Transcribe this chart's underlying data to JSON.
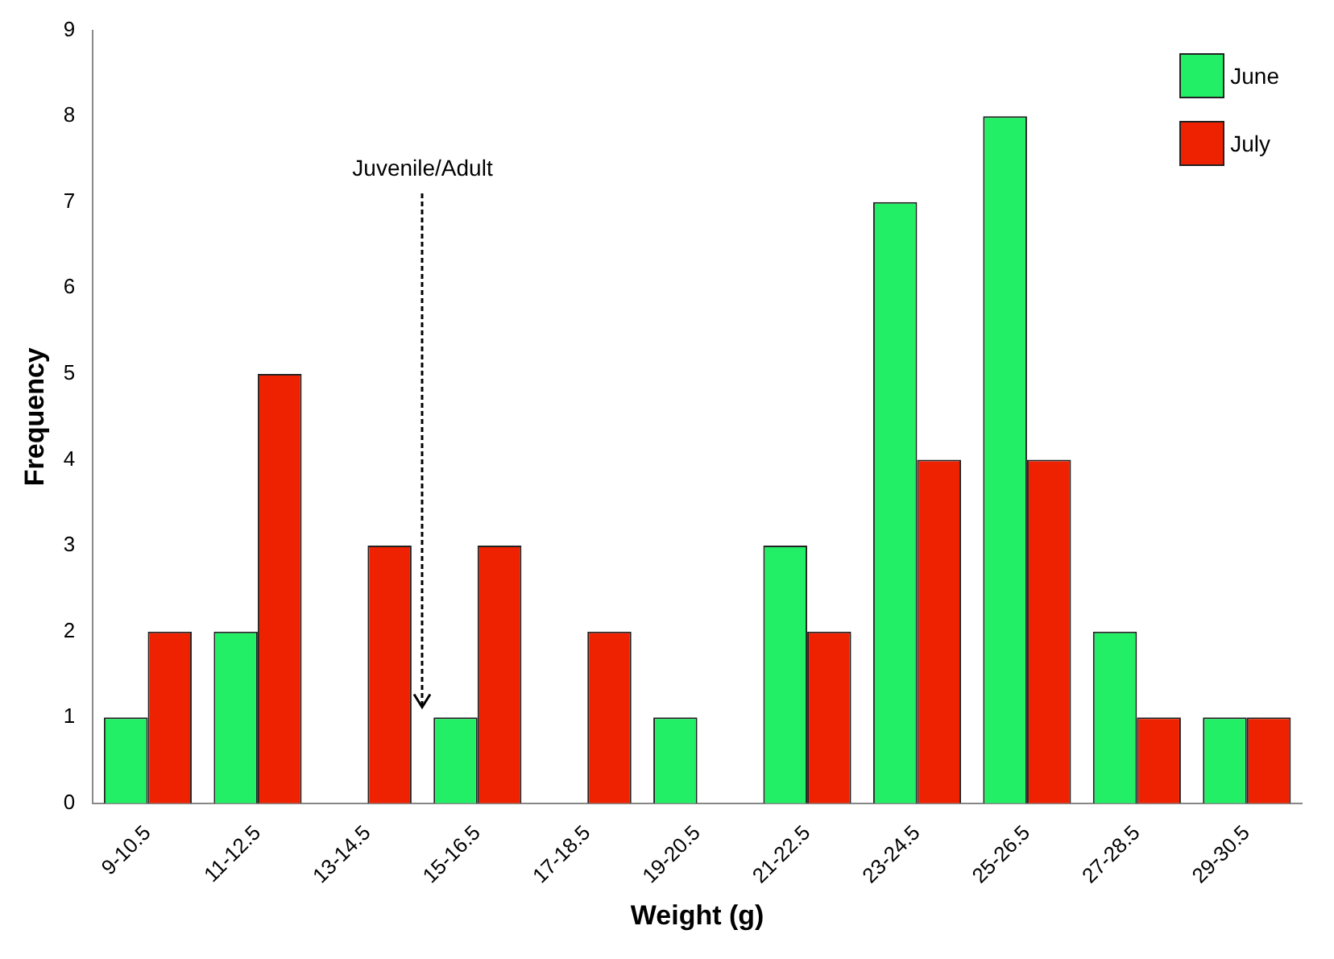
{
  "chart_data": {
    "type": "bar",
    "xlabel": "Weight (g)",
    "ylabel": "Frequency",
    "categories": [
      "9-10.5",
      "11-12.5",
      "13-14.5",
      "15-16.5",
      "17-18.5",
      "19-20.5",
      "21-22.5",
      "23-24.5",
      "25-26.5",
      "27-28.5",
      "29-30.5"
    ],
    "series": [
      {
        "name": "June",
        "color": "#22ee66",
        "values": [
          1,
          2,
          0,
          1,
          0,
          1,
          3,
          7,
          8,
          2,
          1
        ]
      },
      {
        "name": "July",
        "color": "#ee2200",
        "values": [
          2,
          5,
          3,
          3,
          2,
          0,
          2,
          4,
          4,
          1,
          1
        ]
      }
    ],
    "ylim": [
      0,
      9
    ],
    "yticks": [
      0,
      1,
      2,
      3,
      4,
      5,
      6,
      7,
      8,
      9
    ],
    "grid": false,
    "legend": "top right",
    "annotations": [
      "Juvenile/Adult"
    ]
  }
}
